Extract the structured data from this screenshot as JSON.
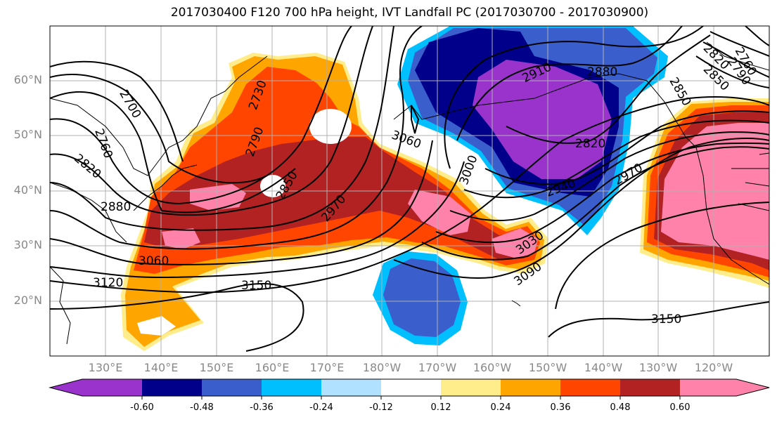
{
  "title": "2017030400 F120 700 hPa height, IVT Landfall PC (2017030700 - 2017030900)",
  "lat_labels": [
    "60°N",
    "50°N",
    "40°N",
    "30°N",
    "20°N"
  ],
  "lon_labels": [
    "130°E",
    "140°E",
    "150°E",
    "160°E",
    "170°E",
    "180°W",
    "170°W",
    "160°W",
    "150°W",
    "140°W",
    "130°W",
    "120°W"
  ],
  "contour_labels": [
    "2700",
    "2730",
    "2760",
    "2760",
    "2790",
    "2790",
    "2820",
    "2820",
    "2820",
    "2850",
    "2850",
    "2850",
    "2880",
    "2880",
    "2910",
    "2940",
    "2970",
    "2970",
    "3000",
    "3030",
    "3060",
    "3060",
    "3090",
    "3120",
    "3150",
    "3150"
  ],
  "colorbar": {
    "colors": [
      "#9933cc",
      "#00008b",
      "#3a5fcd",
      "#00bfff",
      "#b0e2ff",
      "#ffffff",
      "#ffec8b",
      "#ffa500",
      "#ff4500",
      "#b22222",
      "#ff82ab"
    ],
    "tick_labels": [
      "-0.60",
      "-0.48",
      "-0.36",
      "-0.24",
      "-0.12",
      "0.12",
      "0.24",
      "0.36",
      "0.48",
      "0.60"
    ]
  },
  "colors": {
    "grid": "#b0b0b0",
    "contour": "#000000",
    "label": "#808080"
  }
}
